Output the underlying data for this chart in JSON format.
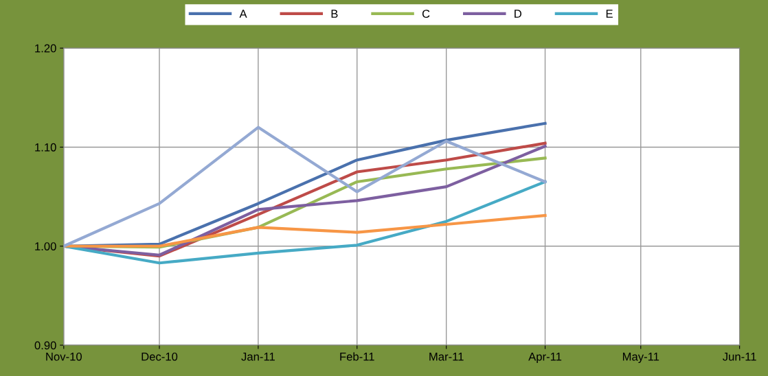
{
  "chart_data": {
    "type": "line",
    "x": [
      "2010-11-01",
      "2010-12-01",
      "2011-01-01",
      "2011-02-01",
      "2011-03-01",
      "2011-04-01"
    ],
    "series": [
      {
        "name": "A",
        "color": "#4a71ad",
        "values": [
          1.0,
          1.002,
          1.043,
          1.087,
          1.107,
          1.124
        ]
      },
      {
        "name": "B",
        "color": "#be4b48",
        "values": [
          1.0,
          0.99,
          1.032,
          1.075,
          1.087,
          1.104
        ]
      },
      {
        "name": "C",
        "color": "#98b954",
        "values": [
          1.0,
          0.999,
          1.019,
          1.065,
          1.078,
          1.089
        ]
      },
      {
        "name": "D",
        "color": "#7d5fa0",
        "values": [
          1.0,
          0.991,
          1.037,
          1.046,
          1.06,
          1.101
        ]
      },
      {
        "name": "E",
        "color": "#46aac5",
        "values": [
          1.0,
          0.983,
          0.993,
          1.001,
          1.025,
          1.065
        ]
      },
      {
        "color": "#f79646",
        "values": [
          1.0,
          1.0,
          1.019,
          1.014,
          1.022,
          1.031
        ]
      },
      {
        "color": "#94a9d3",
        "values": [
          1.0,
          1.043,
          1.12,
          1.055,
          1.106,
          1.065
        ]
      }
    ],
    "xlim": [
      "2010-11-01",
      "2011-06-01"
    ],
    "xticks": [
      {
        "value": "2010-11-01",
        "label": "Nov-10"
      },
      {
        "value": "2010-12-01",
        "label": "Dec-10"
      },
      {
        "value": "2011-01-01",
        "label": "Jan-11"
      },
      {
        "value": "2011-02-01",
        "label": "Feb-11"
      },
      {
        "value": "2011-03-01",
        "label": "Mar-11"
      },
      {
        "value": "2011-04-01",
        "label": "Apr-11"
      },
      {
        "value": "2011-05-01",
        "label": "May-11"
      },
      {
        "value": "2011-06-01",
        "label": "Jun-11"
      }
    ],
    "ylim": [
      0.9,
      1.2
    ],
    "yticks": [
      {
        "value": 0.9,
        "label": "0.90"
      },
      {
        "value": 1.0,
        "label": "1.00"
      },
      {
        "value": 1.1,
        "label": "1.10"
      },
      {
        "value": 1.2,
        "label": "1.20"
      }
    ],
    "grid": true,
    "legend": "top",
    "marker": "none",
    "line_style": "solid"
  }
}
